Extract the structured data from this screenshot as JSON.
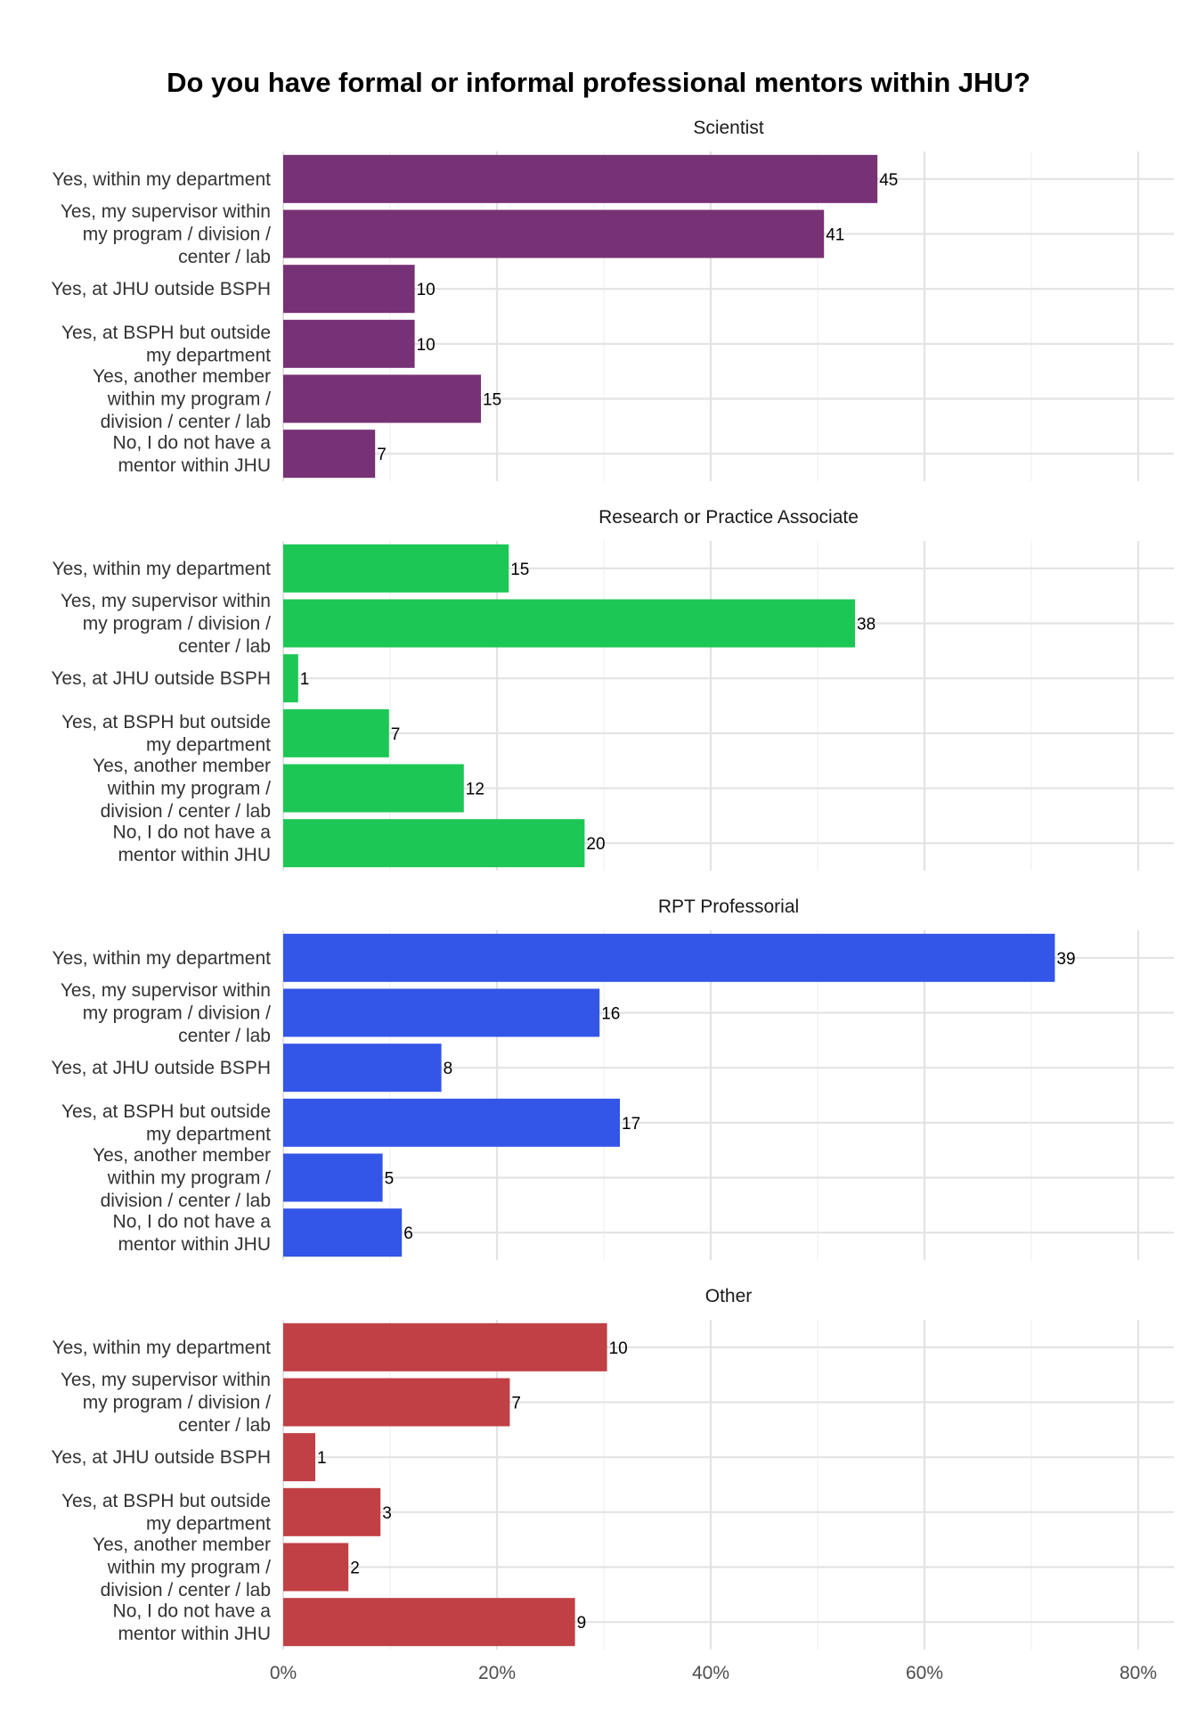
{
  "chart_data": {
    "type": "bar",
    "orientation": "horizontal",
    "title": "Do you have formal or informal professional mentors within JHU?",
    "categories": [
      "Yes, within my department",
      "Yes, my supervisor within my program / division / center / lab",
      "Yes, at JHU outside BSPH",
      "Yes, at BSPH but outside my department",
      "Yes, another member within my program / division / center / lab",
      "No, I do not have a mentor within JHU"
    ],
    "category_lines": [
      [
        "Yes, within my department"
      ],
      [
        "Yes, my supervisor within",
        "my program / division /",
        "center / lab"
      ],
      [
        "Yes, at JHU outside BSPH"
      ],
      [
        "Yes, at BSPH but outside",
        "my department"
      ],
      [
        "Yes, another member",
        "within my program /",
        "division / center / lab"
      ],
      [
        "No, I do not have a",
        "mentor within JHU"
      ]
    ],
    "x_ticks": [
      0,
      20,
      40,
      60,
      80
    ],
    "x_tick_labels": [
      "0%",
      "20%",
      "40%",
      "60%",
      "80%"
    ],
    "xlim": [
      0,
      83
    ],
    "grid": true,
    "panels": [
      {
        "name": "Scientist",
        "color": "#773175",
        "counts": [
          45,
          41,
          10,
          10,
          15,
          7
        ],
        "percent": [
          55.6,
          50.6,
          12.3,
          12.3,
          18.5,
          8.6
        ]
      },
      {
        "name": "Research or Practice Associate",
        "color": "#1DC755",
        "counts": [
          15,
          38,
          1,
          7,
          12,
          20
        ],
        "percent": [
          21.1,
          53.5,
          1.4,
          9.9,
          16.9,
          28.2
        ]
      },
      {
        "name": "RPT Professorial",
        "color": "#3355E8",
        "counts": [
          39,
          16,
          8,
          17,
          5,
          6
        ],
        "percent": [
          72.2,
          29.6,
          14.8,
          31.5,
          9.3,
          11.1
        ]
      },
      {
        "name": "Other",
        "color": "#C04045",
        "counts": [
          10,
          7,
          1,
          3,
          2,
          9
        ],
        "percent": [
          30.3,
          21.2,
          3.0,
          9.1,
          6.1,
          27.3
        ]
      }
    ]
  }
}
